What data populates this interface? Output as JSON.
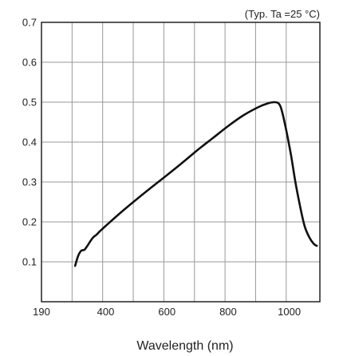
{
  "chart_data": {
    "type": "line",
    "title": "",
    "annotation": "(Typ. Ta =25 °C)",
    "xlabel": "Wavelength (nm)",
    "ylabel": "",
    "xlim": [
      190,
      1100
    ],
    "ylim": [
      0,
      0.7
    ],
    "x_tick_values": [
      190,
      400,
      600,
      800,
      1000
    ],
    "x_tick_labels": [
      "190",
      "400",
      "600",
      "800",
      "1000"
    ],
    "y_tick_values": [
      0.1,
      0.2,
      0.3,
      0.4,
      0.5,
      0.6,
      0.7
    ],
    "y_tick_labels": [
      "0.1",
      "0.2",
      "0.3",
      "0.4",
      "0.5",
      "0.6",
      "0.7"
    ],
    "x_grid": [
      290,
      390,
      490,
      590,
      690,
      790,
      890,
      990
    ],
    "grid": true,
    "legend": "none",
    "line_color": "#111111",
    "grid_color": "#999999",
    "series": [
      {
        "points": [
          [
            300,
            0.09
          ],
          [
            310,
            0.115
          ],
          [
            320,
            0.128
          ],
          [
            330,
            0.13
          ],
          [
            340,
            0.14
          ],
          [
            350,
            0.152
          ],
          [
            360,
            0.162
          ],
          [
            370,
            0.168
          ],
          [
            380,
            0.176
          ],
          [
            400,
            0.19
          ],
          [
            450,
            0.224
          ],
          [
            500,
            0.256
          ],
          [
            550,
            0.287
          ],
          [
            600,
            0.317
          ],
          [
            650,
            0.348
          ],
          [
            700,
            0.38
          ],
          [
            750,
            0.41
          ],
          [
            800,
            0.44
          ],
          [
            850,
            0.467
          ],
          [
            900,
            0.488
          ],
          [
            930,
            0.497
          ],
          [
            950,
            0.5
          ],
          [
            965,
            0.497
          ],
          [
            975,
            0.48
          ],
          [
            990,
            0.43
          ],
          [
            1005,
            0.37
          ],
          [
            1020,
            0.3
          ],
          [
            1035,
            0.24
          ],
          [
            1050,
            0.19
          ],
          [
            1065,
            0.162
          ],
          [
            1080,
            0.145
          ],
          [
            1090,
            0.14
          ]
        ]
      }
    ]
  }
}
